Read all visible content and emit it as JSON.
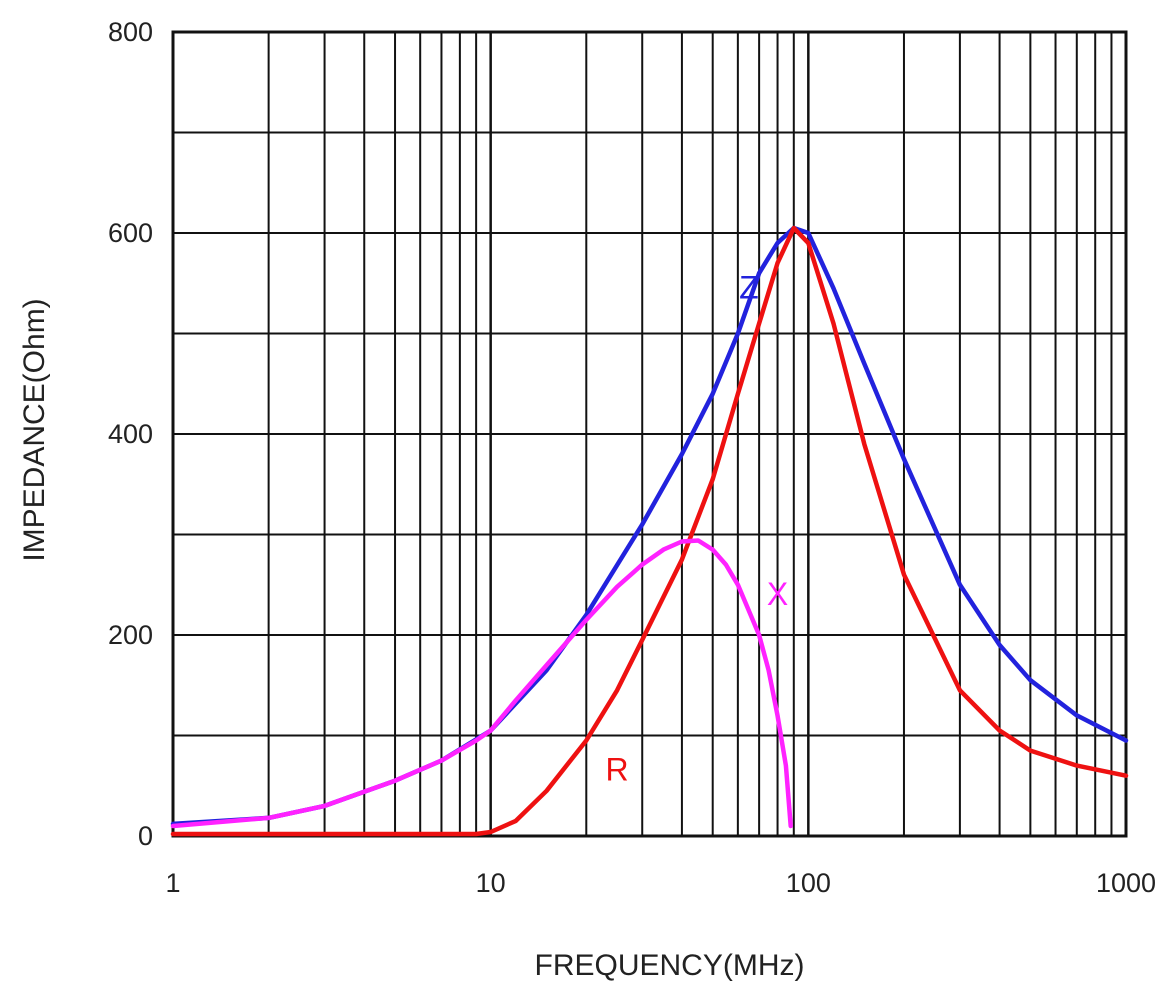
{
  "chart_data": {
    "type": "line",
    "xlabel": "FREQUENCY(MHz)",
    "ylabel": "IMPEDANCE(Ohm)",
    "x_scale": "log",
    "xlim": [
      1,
      1000
    ],
    "ylim": [
      0,
      800
    ],
    "grid": true,
    "x_ticks": [
      "1",
      "10",
      "100",
      "1000"
    ],
    "y_ticks": [
      "0",
      "200",
      "400",
      "600",
      "800"
    ],
    "series": [
      {
        "name": "Z",
        "color": "#2222dd",
        "x": [
          1,
          2,
          3,
          5,
          7,
          10,
          15,
          20,
          30,
          40,
          50,
          60,
          70,
          80,
          90,
          100,
          120,
          150,
          200,
          300,
          400,
          500,
          700,
          1000
        ],
        "y": [
          12,
          18,
          30,
          55,
          75,
          105,
          165,
          220,
          310,
          380,
          440,
          500,
          560,
          590,
          605,
          600,
          545,
          470,
          375,
          250,
          190,
          155,
          120,
          95
        ]
      },
      {
        "name": "R",
        "color": "#ee1111",
        "x": [
          1,
          2,
          5,
          9,
          10,
          12,
          15,
          20,
          25,
          30,
          40,
          50,
          60,
          70,
          80,
          90,
          100,
          120,
          150,
          200,
          300,
          400,
          500,
          700,
          1000
        ],
        "y": [
          2,
          2,
          2,
          2,
          4,
          15,
          45,
          95,
          145,
          195,
          275,
          355,
          440,
          510,
          570,
          605,
          590,
          510,
          390,
          260,
          145,
          105,
          85,
          70,
          60
        ]
      },
      {
        "name": "X",
        "color": "#ff22ff",
        "x": [
          1,
          2,
          3,
          5,
          7,
          9,
          10,
          12,
          15,
          20,
          25,
          30,
          35,
          40,
          45,
          50,
          55,
          60,
          70,
          75,
          80,
          85,
          88
        ],
        "y": [
          10,
          18,
          30,
          55,
          75,
          95,
          105,
          135,
          170,
          215,
          248,
          270,
          285,
          293,
          294,
          285,
          270,
          250,
          200,
          165,
          120,
          70,
          10
        ]
      }
    ],
    "annotations": [
      {
        "text": "Z",
        "x": 65,
        "y": 535
      },
      {
        "text": "X",
        "x": 80,
        "y": 230
      },
      {
        "text": "R",
        "x": 25,
        "y": 55
      }
    ]
  }
}
